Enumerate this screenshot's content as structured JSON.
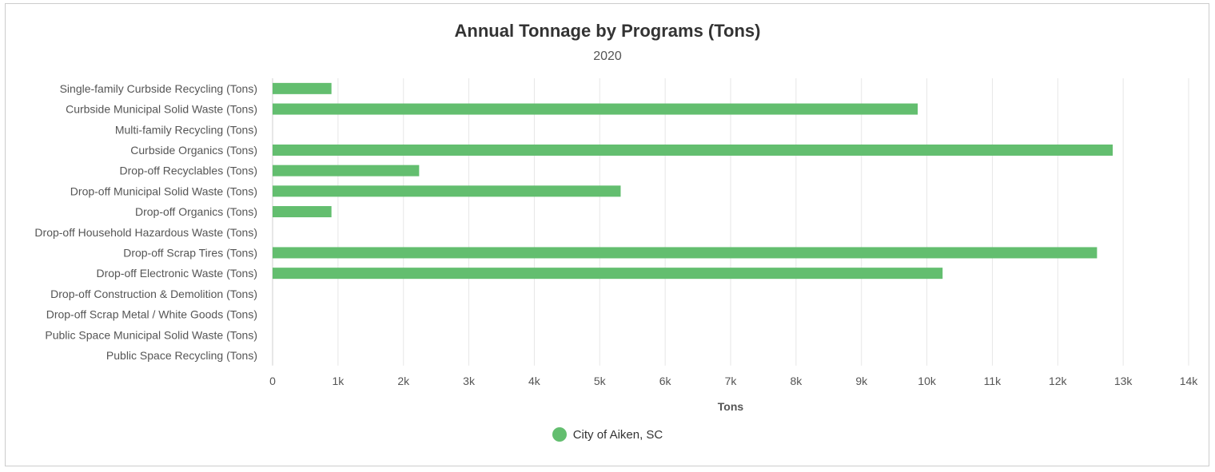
{
  "chart_data": {
    "type": "bar",
    "orientation": "horizontal",
    "title": "Annual Tonnage by Programs (Tons)",
    "subtitle": "2020",
    "xlabel": "Tons",
    "ylabel": "",
    "xlim": [
      0,
      14000
    ],
    "x_ticks": [
      0,
      1000,
      2000,
      3000,
      4000,
      5000,
      6000,
      7000,
      8000,
      9000,
      10000,
      11000,
      12000,
      13000,
      14000
    ],
    "x_tick_labels": [
      "0",
      "1k",
      "2k",
      "3k",
      "4k",
      "5k",
      "6k",
      "7k",
      "8k",
      "9k",
      "10k",
      "11k",
      "12k",
      "13k",
      "14k"
    ],
    "grid": true,
    "legend_position": "bottom-center",
    "categories": [
      "Single-family Curbside Recycling (Tons)",
      "Curbside Municipal Solid Waste (Tons)",
      "Multi-family Recycling (Tons)",
      "Curbside Organics (Tons)",
      "Drop-off Recyclables (Tons)",
      "Drop-off Municipal Solid Waste (Tons)",
      "Drop-off Organics (Tons)",
      "Drop-off Household Hazardous Waste (Tons)",
      "Drop-off Scrap Tires (Tons)",
      "Drop-off Electronic Waste (Tons)",
      "Drop-off Construction & Demolition (Tons)",
      "Drop-off Scrap Metal / White Goods (Tons)",
      "Public Space Municipal Solid Waste (Tons)",
      "Public Space Recycling (Tons)"
    ],
    "series": [
      {
        "name": "City of Aiken, SC",
        "color": "#63be6f",
        "values": [
          900,
          9860,
          0,
          12840,
          2240,
          5320,
          900,
          0,
          12600,
          10240,
          0,
          0,
          0,
          0
        ]
      }
    ]
  }
}
